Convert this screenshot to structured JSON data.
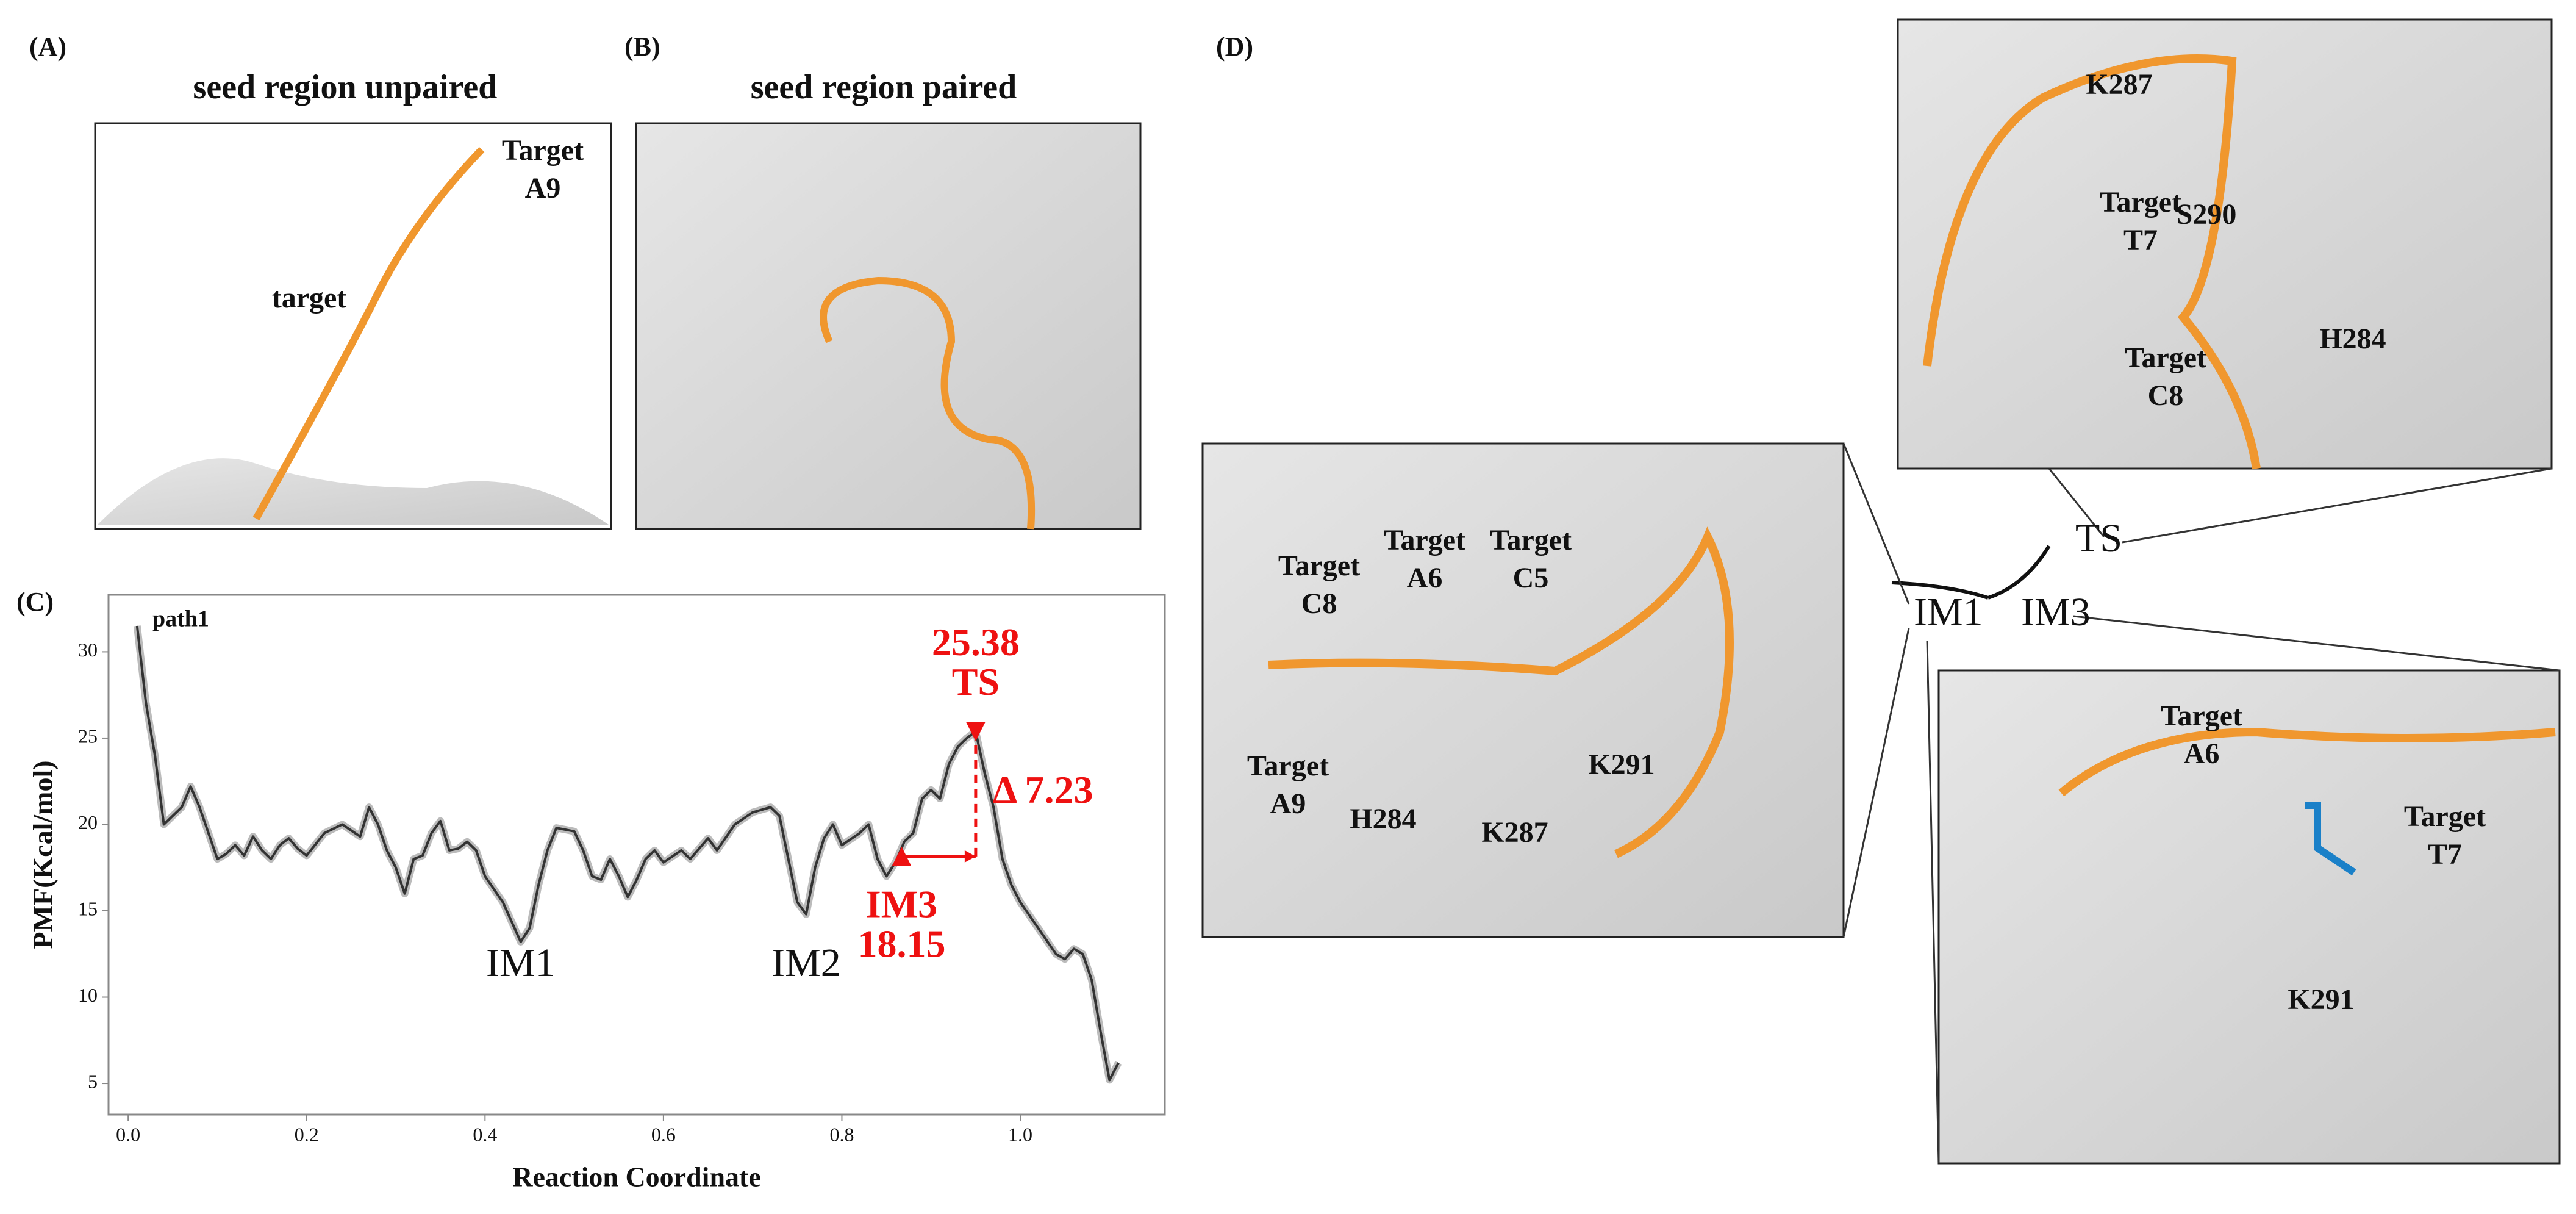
{
  "panels": {
    "A": {
      "label": "(A)",
      "title": "seed region unpaired",
      "labels": [
        [
          "Target",
          "A9"
        ],
        [
          "target"
        ]
      ]
    },
    "B": {
      "label": "(B)",
      "title": "seed region paired"
    },
    "C": {
      "label": "(C)"
    },
    "D": {
      "label": "(D)",
      "states": [
        "TS",
        "IM1",
        "IM3"
      ],
      "top": [
        [
          "K287"
        ],
        [
          "S290"
        ],
        [
          "Target",
          "T7"
        ],
        [
          "Target",
          "C8"
        ],
        [
          "H284"
        ]
      ],
      "left": [
        [
          "Target",
          "C8"
        ],
        [
          "Target",
          "A6"
        ],
        [
          "Target",
          "C5"
        ],
        [
          "Target",
          "A9"
        ],
        [
          "H284"
        ],
        [
          "K287"
        ],
        [
          "K291"
        ]
      ],
      "right": [
        [
          "Target",
          "A6"
        ],
        [
          "Target",
          "T7"
        ],
        [
          "K291"
        ]
      ]
    }
  },
  "chart_data": {
    "type": "line",
    "xlabel": "Reaction Coordinate",
    "ylabel": "PMF(Kcal/mol)",
    "series": [
      {
        "name": "path1",
        "color": "#333333",
        "x": [
          0.01,
          0.02,
          0.03,
          0.04,
          0.05,
          0.06,
          0.07,
          0.08,
          0.09,
          0.1,
          0.11,
          0.12,
          0.13,
          0.14,
          0.15,
          0.16,
          0.17,
          0.18,
          0.19,
          0.2,
          0.22,
          0.24,
          0.26,
          0.27,
          0.28,
          0.29,
          0.3,
          0.31,
          0.32,
          0.33,
          0.34,
          0.35,
          0.36,
          0.37,
          0.38,
          0.39,
          0.4,
          0.42,
          0.44,
          0.45,
          0.46,
          0.47,
          0.48,
          0.5,
          0.51,
          0.52,
          0.53,
          0.54,
          0.55,
          0.56,
          0.57,
          0.58,
          0.59,
          0.6,
          0.62,
          0.63,
          0.65,
          0.66,
          0.68,
          0.7,
          0.72,
          0.73,
          0.74,
          0.75,
          0.76,
          0.77,
          0.78,
          0.79,
          0.8,
          0.82,
          0.83,
          0.84,
          0.85,
          0.86,
          0.87,
          0.88,
          0.89,
          0.9,
          0.91,
          0.92,
          0.93,
          0.94,
          0.95,
          0.96,
          0.97,
          0.98,
          0.99,
          1.0,
          1.02,
          1.04,
          1.05,
          1.06,
          1.07,
          1.08,
          1.09,
          1.1,
          1.11
        ],
        "values": [
          31.5,
          27,
          24,
          20,
          20.5,
          21,
          22.2,
          21,
          19.5,
          18,
          18.3,
          18.8,
          18.2,
          19.3,
          18.5,
          18,
          18.8,
          19.2,
          18.6,
          18.2,
          19.5,
          20,
          19.3,
          21,
          20,
          18.5,
          17.5,
          16,
          18,
          18.2,
          19.5,
          20.2,
          18.5,
          18.6,
          19,
          18.5,
          17,
          15.5,
          13.2,
          14,
          16.5,
          18.5,
          19.8,
          19.6,
          18.5,
          17,
          16.8,
          18,
          17,
          15.8,
          16.8,
          18,
          18.5,
          17.8,
          18.5,
          18,
          19.2,
          18.5,
          20,
          20.7,
          21,
          20.5,
          18,
          15.5,
          14.8,
          17.5,
          19.2,
          20,
          18.8,
          19.5,
          20,
          18,
          17,
          17.8,
          19,
          19.5,
          21.5,
          22,
          21.5,
          23.5,
          24.5,
          25,
          25.38,
          23,
          21,
          18,
          16.5,
          15.5,
          14,
          12.5,
          12.2,
          12.8,
          12.5,
          11,
          8,
          5.2,
          6.2
        ]
      }
    ],
    "xlim": [
      -0.022,
      1.162
    ],
    "ylim": [
      3.2,
      33.3
    ],
    "xticks": [
      {
        "value": 0,
        "label": "0.0"
      },
      0.2,
      0.4,
      0.6,
      0.8,
      {
        "value": 1,
        "label": "1.0"
      }
    ],
    "yticks": [
      5,
      10,
      15,
      20,
      25,
      30
    ],
    "points": [
      {
        "name": "IM3",
        "x": 0.867,
        "value": 18.15
      },
      {
        "name": "TS",
        "x": 0.95,
        "value": 25.38
      }
    ],
    "marker_color": "#ee1111",
    "delta_label": "Δ 7.23",
    "annotations": [
      {
        "text": "IM1",
        "x": 0.44
      },
      {
        "text": "IM2",
        "x": 0.76
      }
    ]
  }
}
